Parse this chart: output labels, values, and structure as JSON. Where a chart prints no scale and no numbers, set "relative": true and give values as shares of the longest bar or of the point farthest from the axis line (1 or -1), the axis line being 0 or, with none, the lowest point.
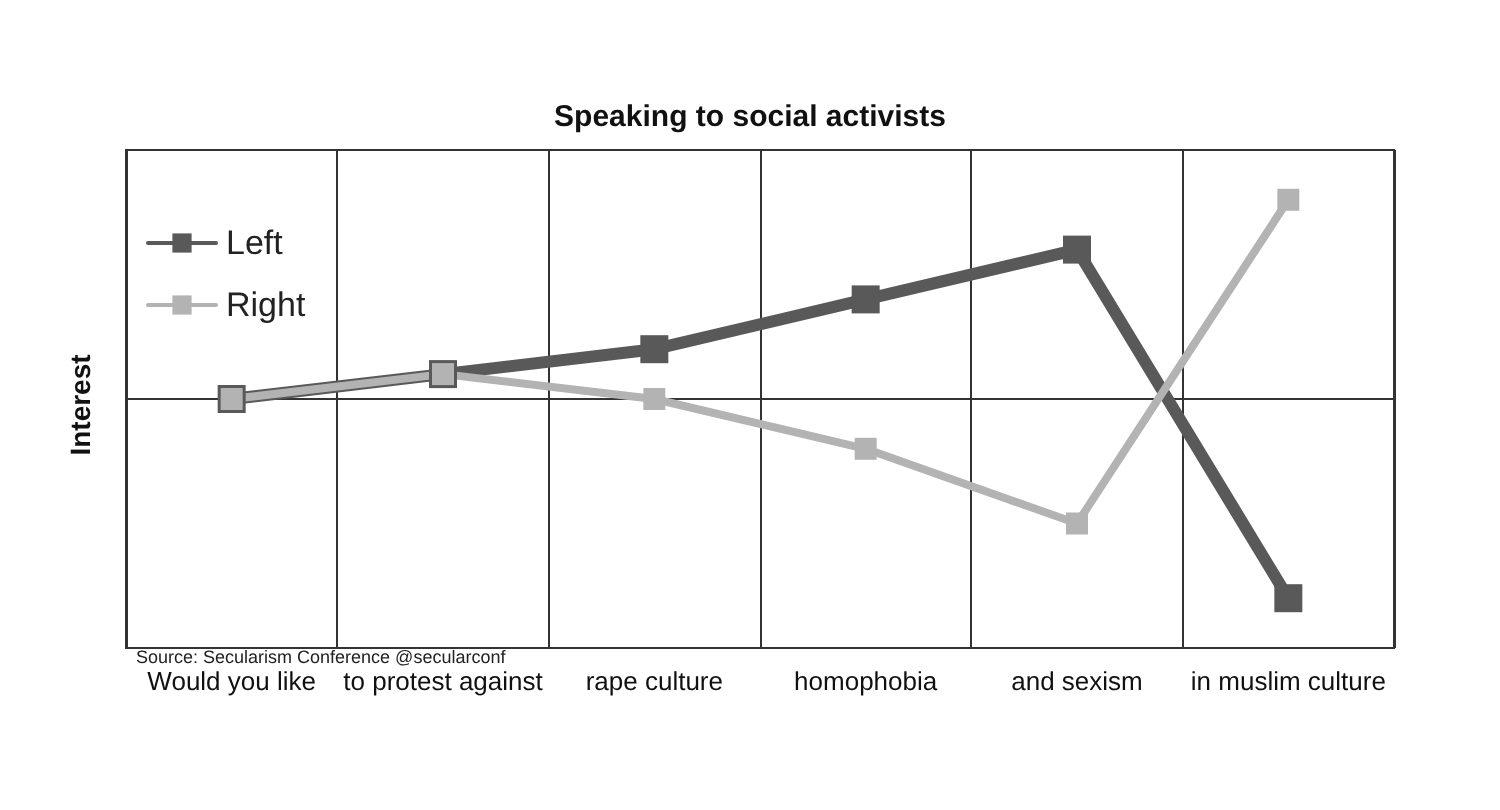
{
  "chart_data": {
    "type": "line",
    "title": "Speaking to social activists",
    "ylabel": "Interest",
    "relative": true,
    "categories": [
      "Would you like",
      "to protest against",
      "rape culture",
      "homophobia",
      "and sexism",
      "in muslim culture"
    ],
    "series": [
      {
        "name": "Left",
        "color": "#595959",
        "values": [
          0,
          0.125,
          0.25,
          0.5,
          0.75,
          -1
        ]
      },
      {
        "name": "Right",
        "color": "#b3b3b3",
        "values": [
          0,
          0.125,
          0,
          -0.25,
          -0.625,
          1
        ]
      }
    ],
    "marker": "square",
    "line_style": "solid",
    "grid": "x",
    "legend": "top left",
    "annotations": [
      "Source: Secularism Conference @secularconf"
    ]
  }
}
